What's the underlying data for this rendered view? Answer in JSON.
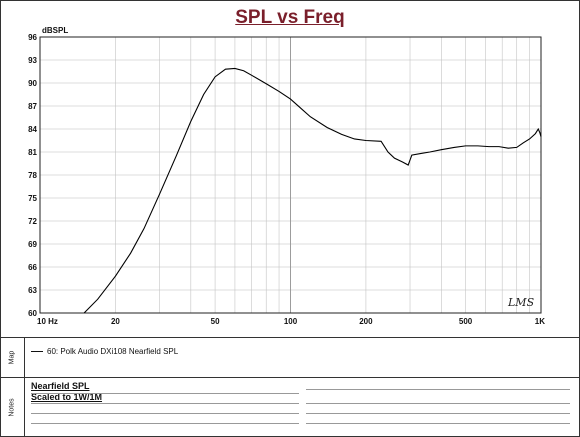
{
  "chart_data": {
    "type": "line",
    "title": "SPL vs Freq",
    "ylabel": "dBSPL",
    "xlabel": "",
    "x_scale": "log",
    "xlim": [
      10,
      1000
    ],
    "ylim": [
      60,
      96
    ],
    "y_ticks": [
      60,
      63,
      66,
      69,
      72,
      75,
      78,
      81,
      84,
      87,
      90,
      93,
      96
    ],
    "x_tick_labels": [
      {
        "value": 10,
        "label": "10 Hz"
      },
      {
        "value": 20,
        "label": "20"
      },
      {
        "value": 50,
        "label": "50"
      },
      {
        "value": 100,
        "label": "100"
      },
      {
        "value": 200,
        "label": "200"
      },
      {
        "value": 500,
        "label": "500"
      },
      {
        "value": 1000,
        "label": "1K"
      }
    ],
    "grid": true,
    "series": [
      {
        "name": "60: Polk Audio DXi108 Nearfield SPL",
        "color": "#000000",
        "points": [
          [
            15,
            60
          ],
          [
            17,
            61.8
          ],
          [
            20,
            64.8
          ],
          [
            23,
            67.8
          ],
          [
            26,
            71
          ],
          [
            30,
            75.5
          ],
          [
            35,
            80.5
          ],
          [
            40,
            85
          ],
          [
            45,
            88.5
          ],
          [
            50,
            90.8
          ],
          [
            55,
            91.8
          ],
          [
            60,
            91.9
          ],
          [
            65,
            91.6
          ],
          [
            70,
            91
          ],
          [
            80,
            89.9
          ],
          [
            90,
            88.9
          ],
          [
            100,
            87.9
          ],
          [
            110,
            86.7
          ],
          [
            120,
            85.6
          ],
          [
            140,
            84.2
          ],
          [
            160,
            83.3
          ],
          [
            180,
            82.7
          ],
          [
            200,
            82.5
          ],
          [
            230,
            82.4
          ],
          [
            245,
            81
          ],
          [
            260,
            80.2
          ],
          [
            280,
            79.7
          ],
          [
            295,
            79.3
          ],
          [
            305,
            80.6
          ],
          [
            330,
            80.8
          ],
          [
            360,
            81
          ],
          [
            400,
            81.3
          ],
          [
            450,
            81.6
          ],
          [
            500,
            81.8
          ],
          [
            560,
            81.8
          ],
          [
            620,
            81.7
          ],
          [
            680,
            81.7
          ],
          [
            740,
            81.5
          ],
          [
            800,
            81.6
          ],
          [
            850,
            82.2
          ],
          [
            900,
            82.7
          ],
          [
            950,
            83.4
          ],
          [
            975,
            84
          ],
          [
            990,
            83.5
          ],
          [
            1000,
            83
          ]
        ]
      }
    ]
  },
  "panels": {
    "map_label": "Map",
    "notes_label": "Notes",
    "legend_entry": "60: Polk Audio DXi108 Nearfield SPL",
    "notes_lines": [
      "Nearfield SPL",
      "Scaled to 1W/1M"
    ]
  },
  "logo_text": "LMS"
}
